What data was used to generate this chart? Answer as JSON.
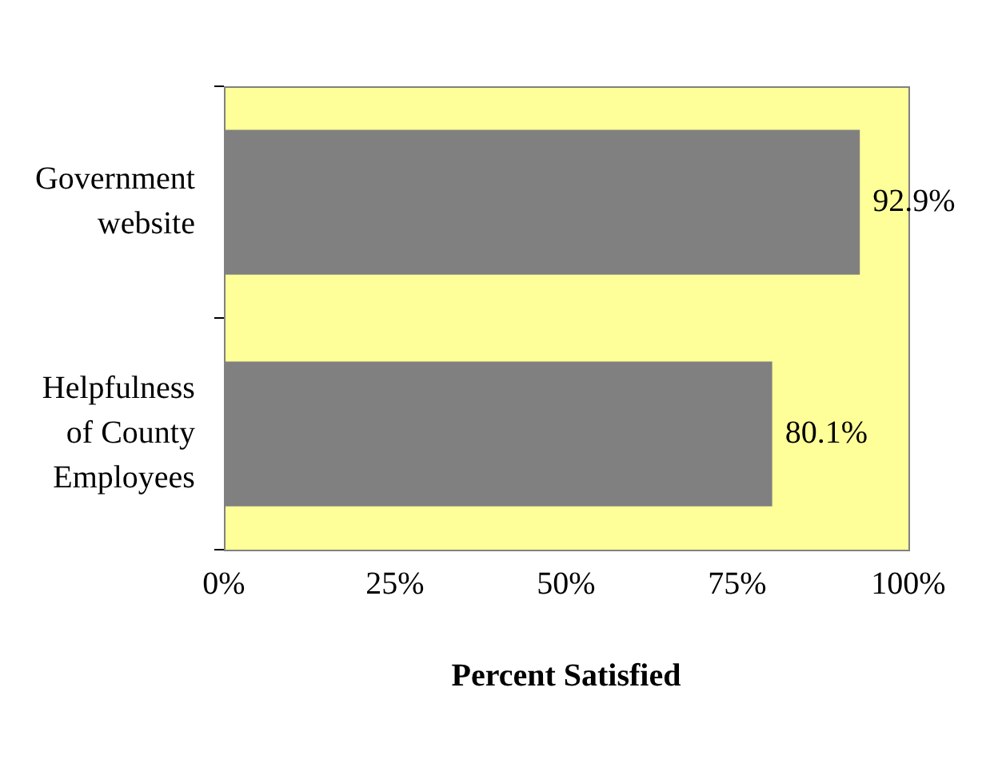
{
  "chart_data": {
    "type": "bar",
    "orientation": "horizontal",
    "xlabel": "Percent Satisfied",
    "categories": [
      "Government website",
      "Helpfulness of County Employees"
    ],
    "values": [
      92.9,
      80.1
    ],
    "color": "#808080",
    "value_labels": [
      "92.9%",
      "80.1%"
    ],
    "xlim": [
      0,
      100
    ],
    "xticks": [
      {
        "value": 0,
        "label": "0%"
      },
      {
        "value": 25,
        "label": "25%"
      },
      {
        "value": 50,
        "label": "50%"
      },
      {
        "value": 75,
        "label": "75%"
      },
      {
        "value": 100,
        "label": "100%"
      }
    ],
    "grid": false,
    "legend": false
  }
}
